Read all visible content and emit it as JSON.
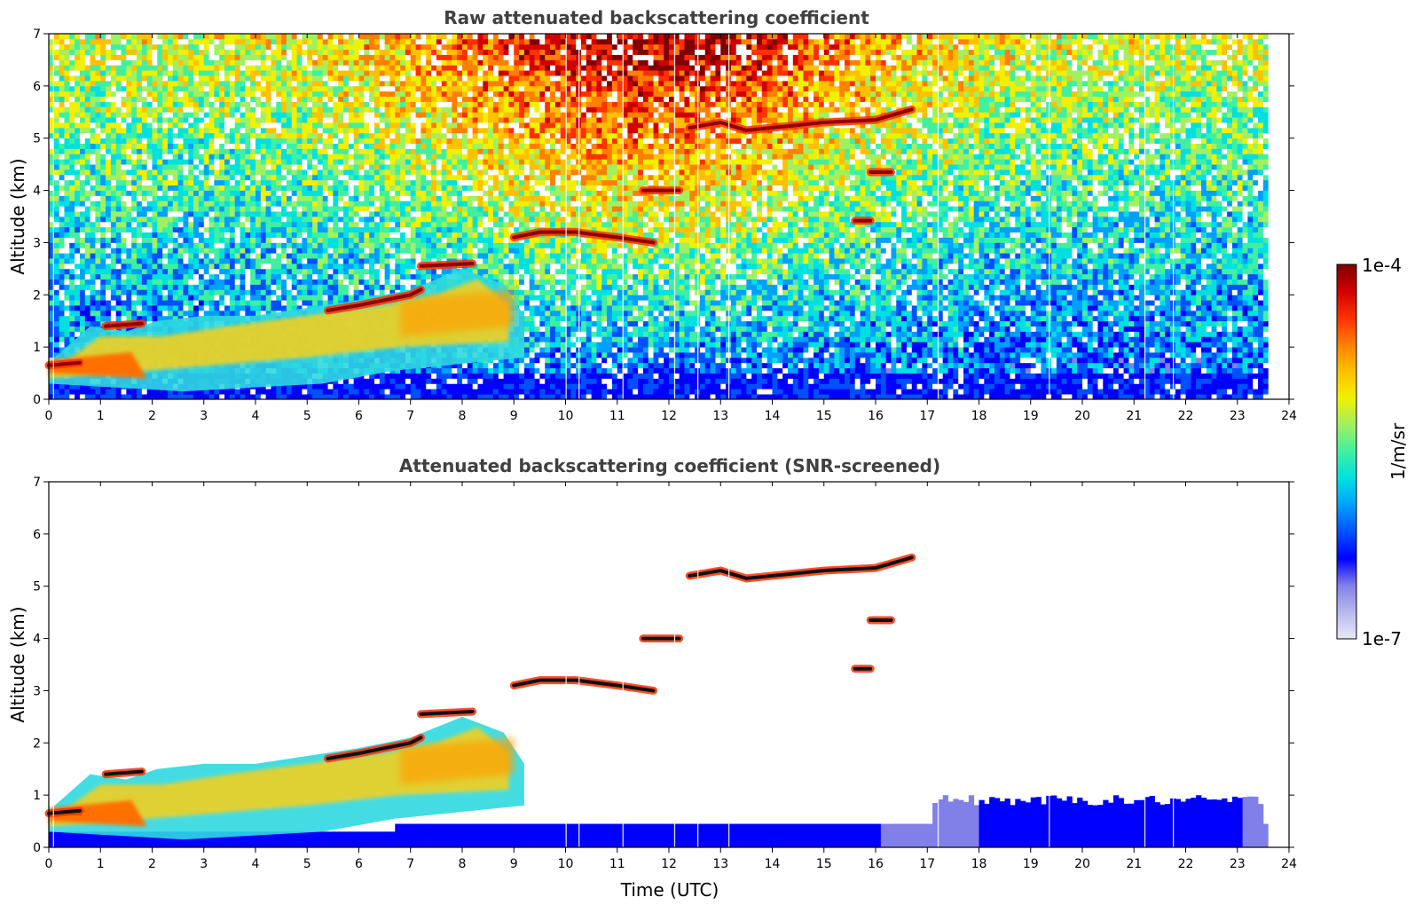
{
  "chart_data": [
    {
      "type": "heatmap",
      "title": "Raw attenuated backscattering coefficient",
      "xlabel": "",
      "ylabel": "Altitude (km)",
      "xlim": [
        0,
        24
      ],
      "ylim": [
        0,
        7
      ],
      "xticks": [
        "0",
        "1",
        "2",
        "3",
        "4",
        "5",
        "6",
        "7",
        "8",
        "9",
        "10",
        "11",
        "12",
        "13",
        "14",
        "15",
        "16",
        "17",
        "18",
        "19",
        "20",
        "21",
        "22",
        "23",
        "24"
      ],
      "yticks": [
        "0",
        "1",
        "2",
        "3",
        "4",
        "5",
        "6",
        "7"
      ],
      "data_end_time": 23.6,
      "layers": [
        {
          "name": "boundary-layer-aerosol",
          "segments": [
            [
              0,
              0.6
            ],
            [
              1,
              1.3
            ],
            [
              2,
              1.5
            ],
            [
              4,
              1.6
            ],
            [
              6,
              1.8
            ],
            [
              7,
              2.0
            ],
            [
              8,
              2.4
            ],
            [
              9,
              2.0
            ]
          ]
        },
        {
          "name": "cloud-layer-3km",
          "segments": [
            [
              9.0,
              3.1
            ],
            [
              10,
              3.2
            ],
            [
              11,
              3.1
            ],
            [
              11.7,
              3.0
            ]
          ]
        },
        {
          "name": "cloud-layer-4km",
          "segments": [
            [
              11.5,
              4.0
            ],
            [
              12.2,
              4.0
            ]
          ]
        },
        {
          "name": "cloud-layer-5km",
          "segments": [
            [
              12.4,
              5.2
            ],
            [
              13,
              5.3
            ],
            [
              14,
              5.2
            ],
            [
              15,
              5.3
            ],
            [
              16,
              5.3
            ],
            [
              16.7,
              5.55
            ]
          ]
        },
        {
          "name": "cloud-patch-4.3km",
          "segments": [
            [
              15.9,
              4.35
            ],
            [
              16.3,
              4.35
            ]
          ]
        },
        {
          "name": "cloud-patch-3.4km",
          "segments": [
            [
              15.6,
              3.4
            ],
            [
              15.9,
              3.4
            ]
          ]
        }
      ]
    },
    {
      "type": "heatmap",
      "title": "Attenuated backscattering coefficient (SNR-screened)",
      "xlabel": "Time (UTC)",
      "ylabel": "Altitude (km)",
      "xlim": [
        0,
        24
      ],
      "ylim": [
        0,
        7
      ],
      "xticks": [
        "0",
        "1",
        "2",
        "3",
        "4",
        "5",
        "6",
        "7",
        "8",
        "9",
        "10",
        "11",
        "12",
        "13",
        "14",
        "15",
        "16",
        "17",
        "18",
        "19",
        "20",
        "21",
        "22",
        "23",
        "24"
      ],
      "yticks": [
        "0",
        "1",
        "2",
        "3",
        "4",
        "5",
        "6",
        "7"
      ],
      "data_end_time": 23.6
    }
  ],
  "colorbar": {
    "label": "1/m/sr",
    "max_label": "1e-4",
    "min_label": "1e-7",
    "scale": "log",
    "colors": [
      "#e8e8f8",
      "#b8b8ee",
      "#8080e8",
      "#0000ff",
      "#0050ff",
      "#00a0ff",
      "#00e0e0",
      "#40f0a0",
      "#a0f060",
      "#f0f000",
      "#ffc000",
      "#ff8000",
      "#ff3000",
      "#d00000",
      "#800000"
    ]
  }
}
